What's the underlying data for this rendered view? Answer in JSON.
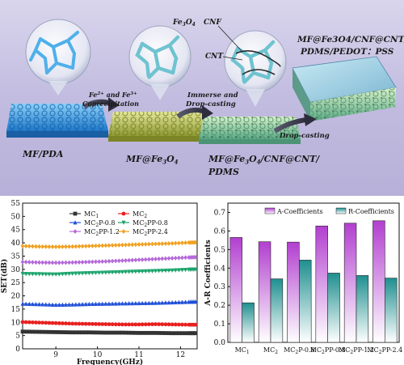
{
  "scheme": {
    "label_mf_pda": "MF/PDA",
    "label_mf_fe3o4": "MF@Fe3O4",
    "label_mid_line1": "MF@Fe3O4/CNF@CNT/",
    "label_mid_line2": "PDMS",
    "label_final_line1": "MF@Fe3O4/CNF@CNT/",
    "label_final_line2": "PDMS/PEDOT：PSS",
    "label_fe3o4": "Fe3O4",
    "label_cnf": "CNF",
    "label_cnt": "CNT",
    "step1_line1": "Fe2+ and Fe3+",
    "step1_line2": "Coprecipitation",
    "step2_line1": "Immerse and",
    "step2_line2": "Drop-casting",
    "step3": "Drop-casting",
    "colors": {
      "background": "#c9c3e2",
      "mf": "#4aa8e8",
      "fe3o4": "#b8c25a",
      "final": "#7fc6a0"
    }
  },
  "chart_data": [
    {
      "type": "line",
      "xlabel": "Frequency(GHz)",
      "ylabel": "SET(dB)",
      "xlim": [
        8.2,
        12.4
      ],
      "ylim": [
        0,
        55
      ],
      "xticks": [
        9,
        10,
        11,
        12
      ],
      "yticks": [
        0,
        5,
        10,
        15,
        20,
        25,
        30,
        35,
        40,
        45,
        50,
        55
      ],
      "legend_position": "top",
      "x": [
        8.2,
        8.6,
        9.0,
        9.4,
        9.8,
        10.2,
        10.6,
        11.0,
        11.4,
        11.8,
        12.2,
        12.4
      ],
      "series": [
        {
          "name": "MC1",
          "color": "#333333",
          "marker": "square",
          "values": [
            6.5,
            6.4,
            6.3,
            6.2,
            6.2,
            6.1,
            6.1,
            6.0,
            6.0,
            5.9,
            5.9,
            5.9
          ]
        },
        {
          "name": "MC2",
          "color": "#e8201e",
          "marker": "circle",
          "values": [
            10.1,
            9.9,
            9.7,
            9.5,
            9.4,
            9.3,
            9.2,
            9.2,
            9.3,
            9.2,
            9.1,
            9.1
          ]
        },
        {
          "name": "MC2P-0.8",
          "color": "#1f4fd8",
          "marker": "triangle-up",
          "values": [
            17.0,
            16.8,
            16.6,
            16.7,
            16.9,
            17.0,
            17.1,
            17.2,
            17.3,
            17.5,
            17.7,
            17.8
          ]
        },
        {
          "name": "MC2PP-0.8",
          "color": "#1aa36b",
          "marker": "triangle-down",
          "values": [
            28.3,
            28.2,
            28.1,
            28.4,
            28.6,
            28.8,
            29.0,
            29.2,
            29.4,
            29.6,
            29.9,
            30.0
          ]
        },
        {
          "name": "MC2PP-1.2",
          "color": "#b469d9",
          "marker": "diamond",
          "values": [
            32.8,
            32.6,
            32.5,
            32.6,
            32.8,
            33.0,
            33.3,
            33.6,
            33.9,
            34.2,
            34.5,
            34.6
          ]
        },
        {
          "name": "MC2PP-2.4",
          "color": "#f0a020",
          "marker": "diamond",
          "values": [
            38.8,
            38.6,
            38.5,
            38.6,
            38.8,
            39.0,
            39.2,
            39.4,
            39.6,
            39.8,
            40.1,
            40.2
          ]
        }
      ],
      "legend_labels": [
        {
          "base": "MC",
          "sub": "1",
          "rest": ""
        },
        {
          "base": "MC",
          "sub": "2",
          "rest": ""
        },
        {
          "base": "MC",
          "sub": "2",
          "rest": "P-0.8"
        },
        {
          "base": "MC",
          "sub": "2",
          "rest": "PP-0.8"
        },
        {
          "base": "MC",
          "sub": "2",
          "rest": "PP-1.2"
        },
        {
          "base": "MC",
          "sub": "2",
          "rest": "PP-2.4"
        }
      ]
    },
    {
      "type": "bar",
      "ylabel": "A-R Coefficients",
      "ylim": [
        0,
        0.75
      ],
      "yticks": [
        0.0,
        0.1,
        0.2,
        0.3,
        0.4,
        0.5,
        0.6,
        0.7
      ],
      "legend_position": "top",
      "categories": [
        "MC1",
        "MC2",
        "MC2P-0.8",
        "MC2PP-0.8",
        "MC2PP-1.2",
        "MC2PP-2.4"
      ],
      "category_labels": [
        {
          "base": "MC",
          "sub": "1",
          "rest": ""
        },
        {
          "base": "MC",
          "sub": "2",
          "rest": ""
        },
        {
          "base": "MC",
          "sub": "2",
          "rest": "P-0.8"
        },
        {
          "base": "MC",
          "sub": "2",
          "rest": "PP-0.8"
        },
        {
          "base": "MC",
          "sub": "2",
          "rest": "PP-1.2"
        },
        {
          "base": "MC",
          "sub": "2",
          "rest": "PP-2.4"
        }
      ],
      "series": [
        {
          "name": "A-Coefficients",
          "color": "#b23fd0",
          "values": [
            0.565,
            0.542,
            0.54,
            0.627,
            0.642,
            0.655
          ]
        },
        {
          "name": "R-Coefficients",
          "color": "#1f8f8f",
          "values": [
            0.213,
            0.342,
            0.443,
            0.373,
            0.36,
            0.346
          ]
        }
      ]
    }
  ]
}
